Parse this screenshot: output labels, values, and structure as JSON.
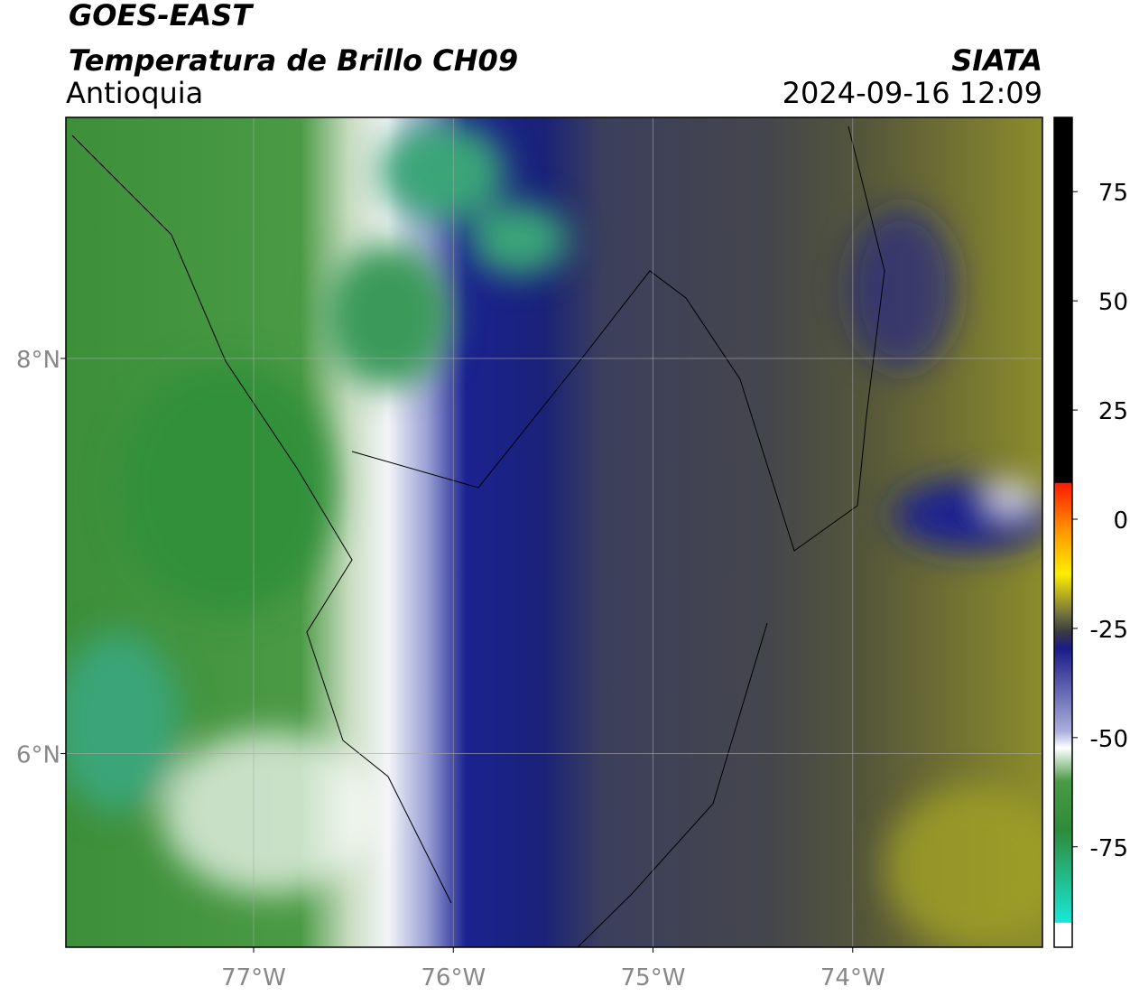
{
  "header": {
    "title": "GOES-EAST",
    "subtitle": "Temperatura de Brillo CH09",
    "source": "SIATA",
    "region": "Antioquia",
    "datetime": "2024-09-16 12:09"
  },
  "map": {
    "xlim": [
      -77.94,
      -73.05
    ],
    "ylim": [
      5.02,
      9.22
    ],
    "xticks": [
      {
        "value": -77,
        "label": "77°W"
      },
      {
        "value": -76,
        "label": "76°W"
      },
      {
        "value": -75,
        "label": "75°W"
      },
      {
        "value": -74,
        "label": "74°W"
      }
    ],
    "yticks": [
      {
        "value": 6,
        "label": "6°N"
      },
      {
        "value": 8,
        "label": "8°N"
      }
    ],
    "grid": true
  },
  "colorbar": {
    "lim": [
      -98,
      92
    ],
    "ticks": [
      75,
      50,
      25,
      0,
      -25,
      -50,
      -75
    ]
  }
}
